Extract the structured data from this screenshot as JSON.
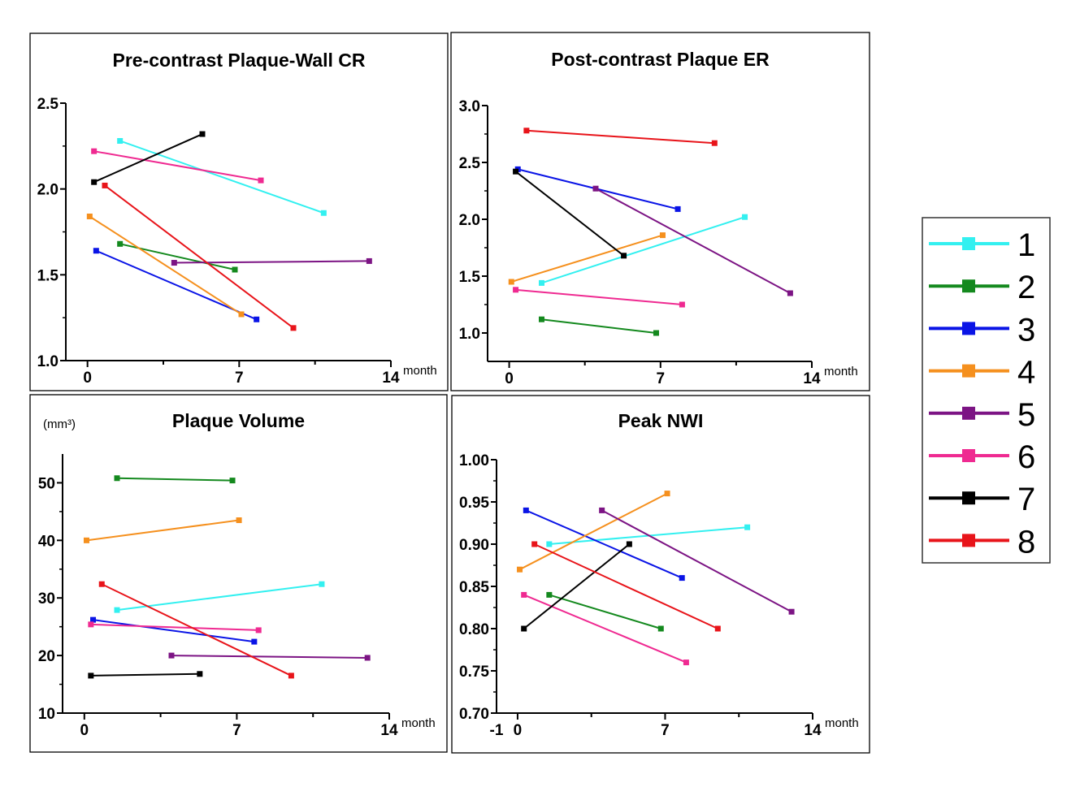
{
  "colors": {
    "1": "#33f0f0",
    "2": "#14891e",
    "3": "#0a14e6",
    "4": "#f5901e",
    "5": "#7c1484",
    "6": "#ef2a91",
    "7": "#000000",
    "8": "#e8141a"
  },
  "legend": {
    "placement": "right",
    "entries": [
      "1",
      "2",
      "3",
      "4",
      "5",
      "6",
      "7",
      "8"
    ]
  },
  "chart_data": [
    {
      "type": "line",
      "title": "Pre-contrast Plaque-Wall CR",
      "xlabel": "month",
      "ylabel": "",
      "xlim": [
        -1,
        14
      ],
      "ylim": [
        1.0,
        2.5
      ],
      "xticks": [
        "0",
        "7",
        "14"
      ],
      "xtick_values": [
        0,
        7,
        14
      ],
      "yticks": [
        "1.0",
        "1.5",
        "2.0",
        "2.5"
      ],
      "ytick_values": [
        1.0,
        1.5,
        2.0,
        2.5
      ],
      "grid": false,
      "series": [
        {
          "name": "1",
          "x": [
            1.5,
            10.9
          ],
          "y": [
            2.28,
            1.86
          ]
        },
        {
          "name": "2",
          "x": [
            1.5,
            6.8
          ],
          "y": [
            1.68,
            1.53
          ]
        },
        {
          "name": "3",
          "x": [
            0.4,
            7.8
          ],
          "y": [
            1.64,
            1.24
          ]
        },
        {
          "name": "4",
          "x": [
            0.1,
            7.1
          ],
          "y": [
            1.84,
            1.27
          ]
        },
        {
          "name": "5",
          "x": [
            4.0,
            13.0
          ],
          "y": [
            1.57,
            1.58
          ]
        },
        {
          "name": "6",
          "x": [
            0.3,
            8.0
          ],
          "y": [
            2.22,
            2.05
          ]
        },
        {
          "name": "7",
          "x": [
            0.3,
            5.3
          ],
          "y": [
            2.04,
            2.32
          ]
        },
        {
          "name": "8",
          "x": [
            0.8,
            9.5
          ],
          "y": [
            2.02,
            1.19
          ]
        }
      ]
    },
    {
      "type": "line",
      "title": "Post-contrast Plaque ER",
      "xlabel": "month",
      "ylabel": "",
      "xlim": [
        -1,
        14
      ],
      "ylim": [
        0.75,
        3.0
      ],
      "xticks": [
        "0",
        "7",
        "14"
      ],
      "xtick_values": [
        0,
        7,
        14
      ],
      "yticks": [
        "1.0",
        "1.5",
        "2.0",
        "2.5",
        "3.0"
      ],
      "ytick_values": [
        1.0,
        1.5,
        2.0,
        2.5,
        3.0
      ],
      "grid": false,
      "series": [
        {
          "name": "1",
          "x": [
            1.5,
            10.9
          ],
          "y": [
            1.44,
            2.02
          ]
        },
        {
          "name": "2",
          "x": [
            1.5,
            6.8
          ],
          "y": [
            1.12,
            1.0
          ]
        },
        {
          "name": "3",
          "x": [
            0.4,
            7.8
          ],
          "y": [
            2.44,
            2.09
          ]
        },
        {
          "name": "4",
          "x": [
            0.1,
            7.1
          ],
          "y": [
            1.45,
            1.86
          ]
        },
        {
          "name": "5",
          "x": [
            4.0,
            13.0
          ],
          "y": [
            2.27,
            1.35
          ]
        },
        {
          "name": "6",
          "x": [
            0.3,
            8.0
          ],
          "y": [
            1.38,
            1.25
          ]
        },
        {
          "name": "7",
          "x": [
            0.3,
            5.3
          ],
          "y": [
            2.42,
            1.68
          ]
        },
        {
          "name": "8",
          "x": [
            0.8,
            9.5
          ],
          "y": [
            2.78,
            2.67
          ]
        }
      ]
    },
    {
      "type": "line",
      "title": "Plaque Volume",
      "xlabel": "month",
      "ylabel": "(mm³)",
      "xlim": [
        -1,
        14
      ],
      "ylim": [
        10,
        55
      ],
      "xticks": [
        "0",
        "7",
        "14"
      ],
      "xtick_values": [
        0,
        7,
        14
      ],
      "yticks": [
        "10",
        "20",
        "30",
        "40",
        "50"
      ],
      "ytick_values": [
        10,
        20,
        30,
        40,
        50
      ],
      "grid": false,
      "series": [
        {
          "name": "1",
          "x": [
            1.5,
            10.9
          ],
          "y": [
            27.9,
            32.4
          ]
        },
        {
          "name": "2",
          "x": [
            1.5,
            6.8
          ],
          "y": [
            50.8,
            50.4
          ]
        },
        {
          "name": "3",
          "x": [
            0.4,
            7.8
          ],
          "y": [
            26.2,
            22.4
          ]
        },
        {
          "name": "4",
          "x": [
            0.1,
            7.1
          ],
          "y": [
            40.0,
            43.5
          ]
        },
        {
          "name": "5",
          "x": [
            4.0,
            13.0
          ],
          "y": [
            20.0,
            19.6
          ]
        },
        {
          "name": "6",
          "x": [
            0.3,
            8.0
          ],
          "y": [
            25.4,
            24.4
          ]
        },
        {
          "name": "7",
          "x": [
            0.3,
            5.3
          ],
          "y": [
            16.5,
            16.8
          ]
        },
        {
          "name": "8",
          "x": [
            0.8,
            9.5
          ],
          "y": [
            32.4,
            16.5
          ]
        }
      ]
    },
    {
      "type": "line",
      "title": "Peak NWI",
      "xlabel": "month",
      "ylabel": "",
      "xlim": [
        -1,
        14
      ],
      "ylim": [
        0.7,
        1.0
      ],
      "xticks": [
        "-1",
        "0",
        "7",
        "14"
      ],
      "xtick_values": [
        -1,
        0,
        7,
        14
      ],
      "yticks": [
        "0.70",
        "0.75",
        "0.80",
        "0.85",
        "0.90",
        "0.95",
        "1.00"
      ],
      "ytick_values": [
        0.7,
        0.75,
        0.8,
        0.85,
        0.9,
        0.95,
        1.0
      ],
      "grid": false,
      "series": [
        {
          "name": "1",
          "x": [
            1.5,
            10.9
          ],
          "y": [
            0.9,
            0.92
          ]
        },
        {
          "name": "2",
          "x": [
            1.5,
            6.8
          ],
          "y": [
            0.84,
            0.8
          ]
        },
        {
          "name": "3",
          "x": [
            0.4,
            7.8
          ],
          "y": [
            0.94,
            0.86
          ]
        },
        {
          "name": "4",
          "x": [
            0.1,
            7.1
          ],
          "y": [
            0.87,
            0.96
          ]
        },
        {
          "name": "5",
          "x": [
            4.0,
            13.0
          ],
          "y": [
            0.94,
            0.82
          ]
        },
        {
          "name": "6",
          "x": [
            0.3,
            8.0
          ],
          "y": [
            0.84,
            0.76
          ]
        },
        {
          "name": "7",
          "x": [
            0.3,
            5.3
          ],
          "y": [
            0.8,
            0.9
          ]
        },
        {
          "name": "8",
          "x": [
            0.8,
            9.5
          ],
          "y": [
            0.9,
            0.8
          ]
        }
      ]
    }
  ]
}
